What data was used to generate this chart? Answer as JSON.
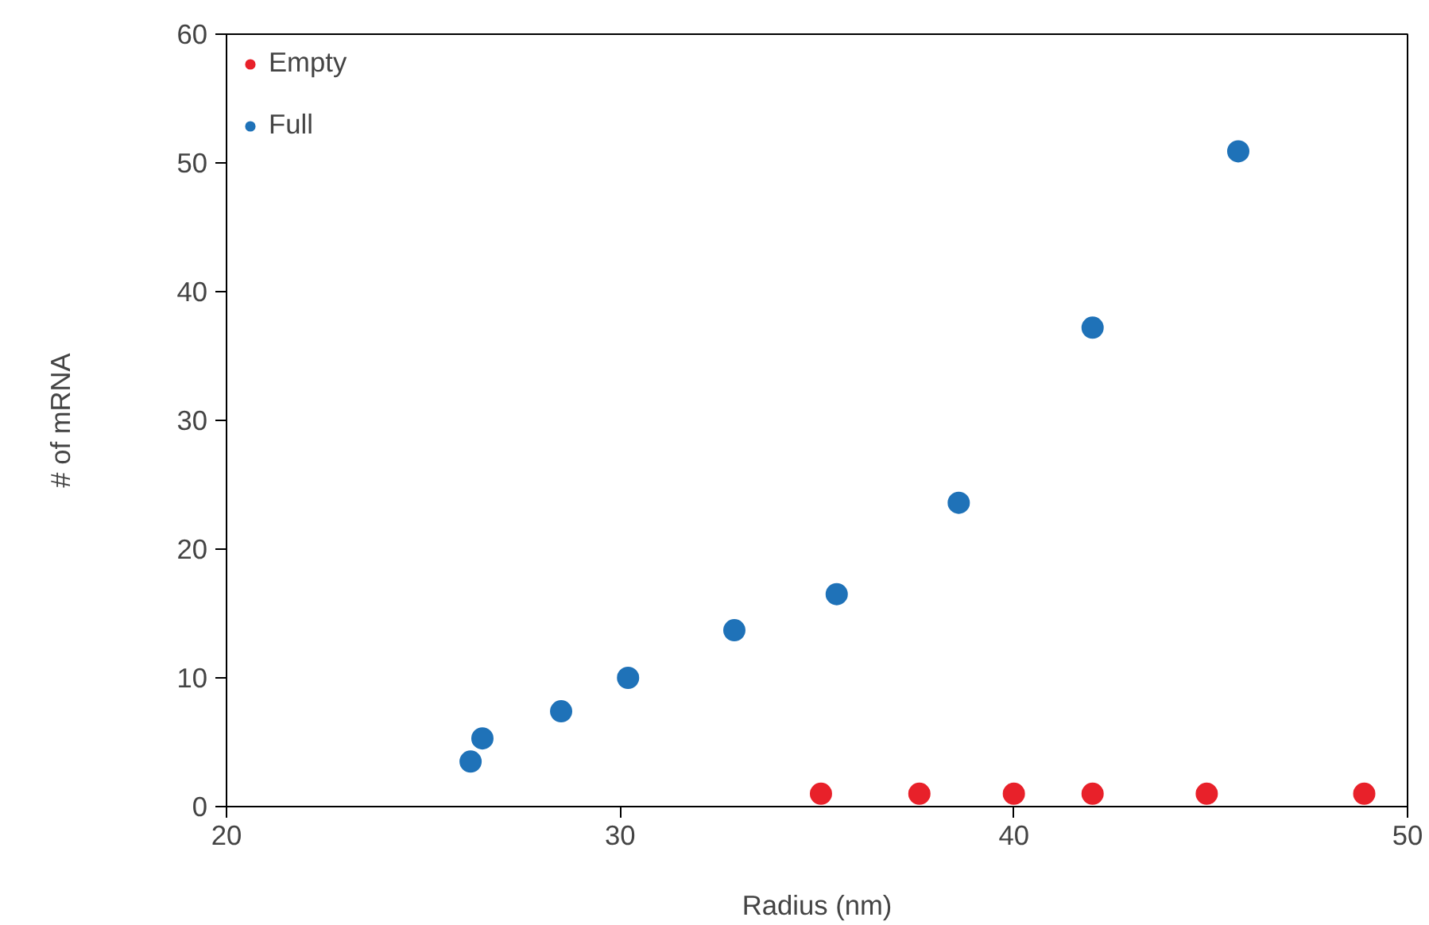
{
  "chart_data": {
    "type": "scatter",
    "xlabel": "Radius (nm)",
    "ylabel": "# of mRNA",
    "xlim": [
      20,
      50
    ],
    "ylim": [
      0,
      60
    ],
    "xticks": [
      20,
      30,
      40,
      50
    ],
    "yticks": [
      0,
      10,
      20,
      30,
      40,
      50,
      60
    ],
    "grid": false,
    "legend": "top left",
    "marker": "circle",
    "series": [
      {
        "name": "Empty",
        "color": "#e8212a",
        "x": [
          35.1,
          37.6,
          40.0,
          42.0,
          44.9,
          48.9
        ],
        "values": [
          1,
          1,
          1,
          1,
          1,
          1
        ]
      },
      {
        "name": "Full",
        "color": "#1f72b8",
        "x": [
          26.2,
          26.5,
          28.5,
          30.2,
          32.9,
          35.5,
          38.6,
          42.0,
          45.7
        ],
        "values": [
          3.5,
          5.3,
          7.4,
          10.0,
          13.7,
          16.5,
          23.6,
          37.2,
          50.9
        ]
      }
    ]
  }
}
